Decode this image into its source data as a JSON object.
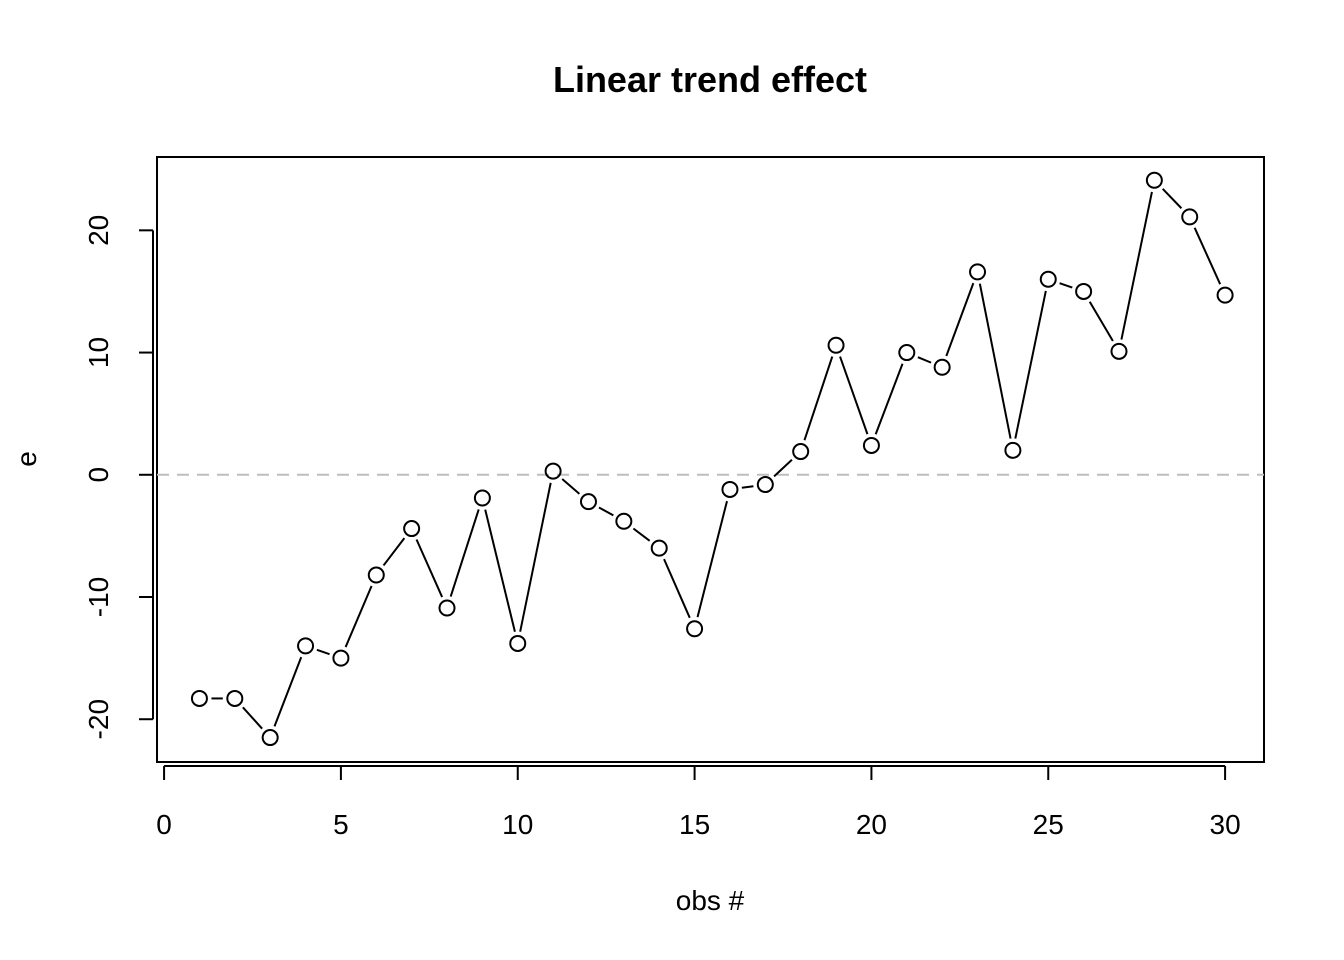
{
  "chart_data": {
    "type": "line",
    "title": "Linear trend effect",
    "xlabel": "obs #",
    "ylabel": "e",
    "xlim": [
      -0.2,
      31.1
    ],
    "ylim": [
      -23.5,
      26
    ],
    "x_ticks": [
      0,
      5,
      10,
      15,
      20,
      25,
      30
    ],
    "y_ticks": [
      -20,
      -10,
      0,
      10,
      20
    ],
    "reference_line": {
      "y": 0,
      "style": "dashed",
      "color": "#bebebe"
    },
    "grid": false,
    "legend": "none",
    "marker": "open-circle",
    "series": [
      {
        "x": [
          1,
          2,
          3,
          4,
          5,
          6,
          7,
          8,
          9,
          10,
          11,
          12,
          13,
          14,
          15,
          16,
          17,
          18,
          19,
          20,
          21,
          22,
          23,
          24,
          25,
          26,
          27,
          28,
          29,
          30
        ],
        "values": [
          -18.3,
          -18.3,
          -21.5,
          -14.0,
          -15.0,
          -8.2,
          -4.4,
          -10.9,
          -1.9,
          -13.8,
          0.3,
          -2.2,
          -3.8,
          -6.0,
          -12.6,
          -1.2,
          -0.8,
          1.9,
          10.6,
          2.4,
          10.0,
          8.8,
          16.6,
          2.0,
          16.0,
          15.0,
          10.1,
          24.1,
          21.1,
          14.7
        ]
      }
    ]
  }
}
